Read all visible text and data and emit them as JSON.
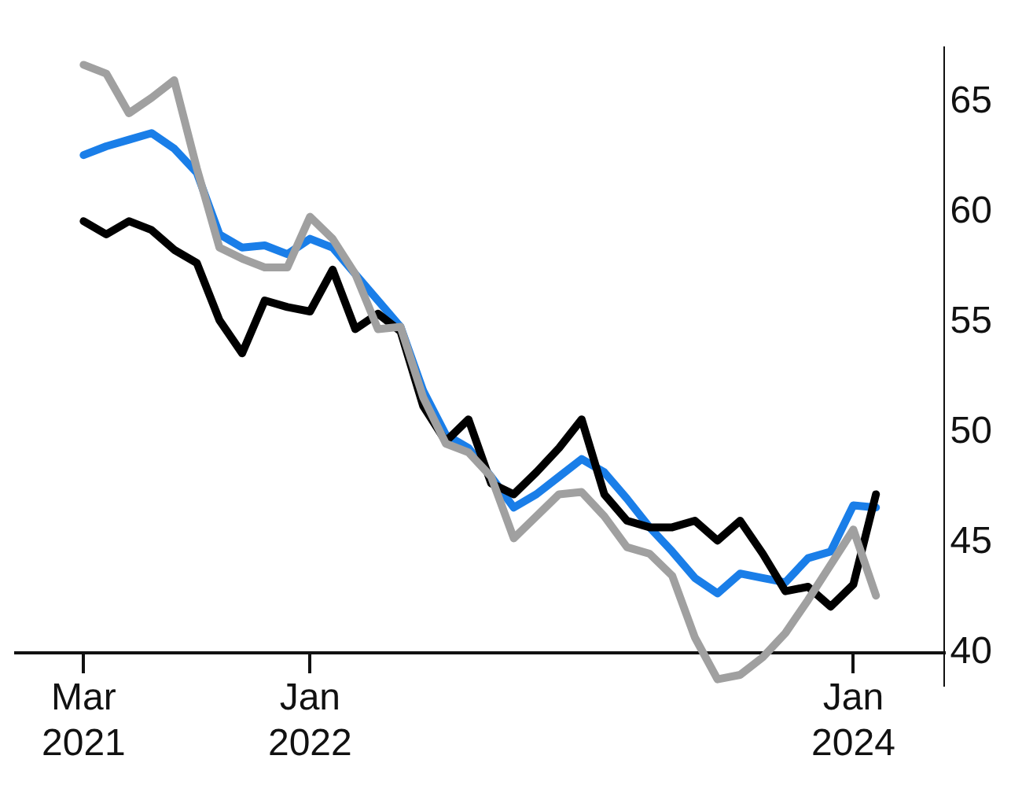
{
  "chart_data": {
    "type": "line",
    "x": [
      "2021-03",
      "2021-04",
      "2021-05",
      "2021-06",
      "2021-07",
      "2021-08",
      "2021-09",
      "2021-10",
      "2021-11",
      "2021-12",
      "2022-01",
      "2022-02",
      "2022-03",
      "2022-04",
      "2022-05",
      "2022-06",
      "2022-07",
      "2022-08",
      "2022-09",
      "2022-10",
      "2022-11",
      "2022-12",
      "2023-01",
      "2023-02",
      "2023-03",
      "2023-04",
      "2023-05",
      "2023-06",
      "2023-07",
      "2023-08",
      "2023-09",
      "2023-10",
      "2023-11",
      "2023-12",
      "2024-01",
      "2024-02"
    ],
    "series": [
      {
        "color": "#a0a0a0",
        "values": [
          66.7,
          66.3,
          64.5,
          65.2,
          66.0,
          62.0,
          58.4,
          57.9,
          57.5,
          57.5,
          59.8,
          58.8,
          57.2,
          54.7,
          54.8,
          51.6,
          49.5,
          49.1,
          48.0,
          45.2,
          46.2,
          47.2,
          47.3,
          46.2,
          44.8,
          44.5,
          43.5,
          40.7,
          38.8,
          39.0,
          39.8,
          40.9,
          42.4,
          44.0,
          45.6,
          42.6
        ]
      },
      {
        "color": "#000000",
        "values": [
          59.6,
          59.0,
          59.6,
          59.2,
          58.3,
          57.7,
          55.1,
          53.6,
          56.0,
          55.7,
          55.5,
          57.4,
          54.7,
          55.4,
          54.6,
          51.2,
          49.6,
          50.6,
          47.7,
          47.2,
          48.2,
          49.3,
          50.6,
          47.2,
          46.0,
          45.7,
          45.7,
          46.0,
          45.1,
          46.0,
          44.5,
          42.8,
          43.0,
          42.1,
          43.1,
          47.2
        ]
      },
      {
        "color": "#1a7ee8",
        "values": [
          62.6,
          63.0,
          63.3,
          63.6,
          62.9,
          61.8,
          59.0,
          58.4,
          58.5,
          58.1,
          58.8,
          58.4,
          57.2,
          56.0,
          54.8,
          51.9,
          49.9,
          49.3,
          48.0,
          46.6,
          47.2,
          48.0,
          48.8,
          48.2,
          47.0,
          45.7,
          44.6,
          43.4,
          42.7,
          43.6,
          43.4,
          43.2,
          44.3,
          44.6,
          46.7,
          46.6
        ]
      }
    ],
    "xlim": [
      "2020-12",
      "2024-05"
    ],
    "xticks": [
      {
        "value": "2021-03",
        "label": "Mar 2021"
      },
      {
        "value": "2022-01",
        "label": "Jan 2022"
      },
      {
        "value": "2024-01",
        "label": "Jan 2024"
      }
    ],
    "ylim": [
      38.5,
      67.5
    ],
    "yticks": [
      40,
      45,
      50,
      55,
      60,
      65
    ],
    "grid": false,
    "legend": false,
    "marker": "none",
    "line_style": "solid"
  }
}
